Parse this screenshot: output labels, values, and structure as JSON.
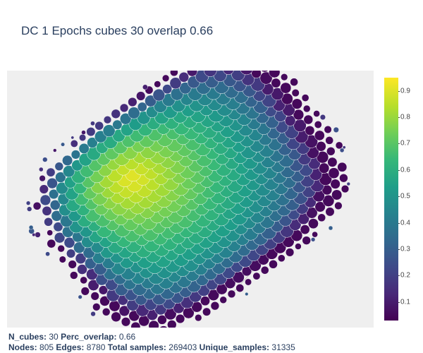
{
  "chart_data": {
    "type": "scatter",
    "title": "DC 1 Epochs cubes 30 overlap 0.66",
    "xlabel": "",
    "ylabel": "",
    "grid": false,
    "colorbar": {
      "colorscale": "Viridis",
      "range": [
        0.03,
        0.95
      ],
      "ticks": [
        "0.1",
        "0.2",
        "0.3",
        "0.4",
        "0.5",
        "0.6",
        "0.7",
        "0.8",
        "0.9"
      ]
    },
    "colors": {
      "plot_background": "#efefef",
      "edge_color": "#b0b0b0",
      "node_outline": "#ffffff"
    }
  },
  "footer": {
    "line1": [
      {
        "label": "N_cubes:",
        "value": "30"
      },
      {
        "label": "Perc_overlap:",
        "value": "0.66"
      }
    ],
    "line2": [
      {
        "label": "Nodes:",
        "value": "805"
      },
      {
        "label": "Edges:",
        "value": "8780"
      },
      {
        "label": "Total samples:",
        "value": "269403"
      },
      {
        "label": "Unique_samples:",
        "value": "31335"
      }
    ]
  }
}
